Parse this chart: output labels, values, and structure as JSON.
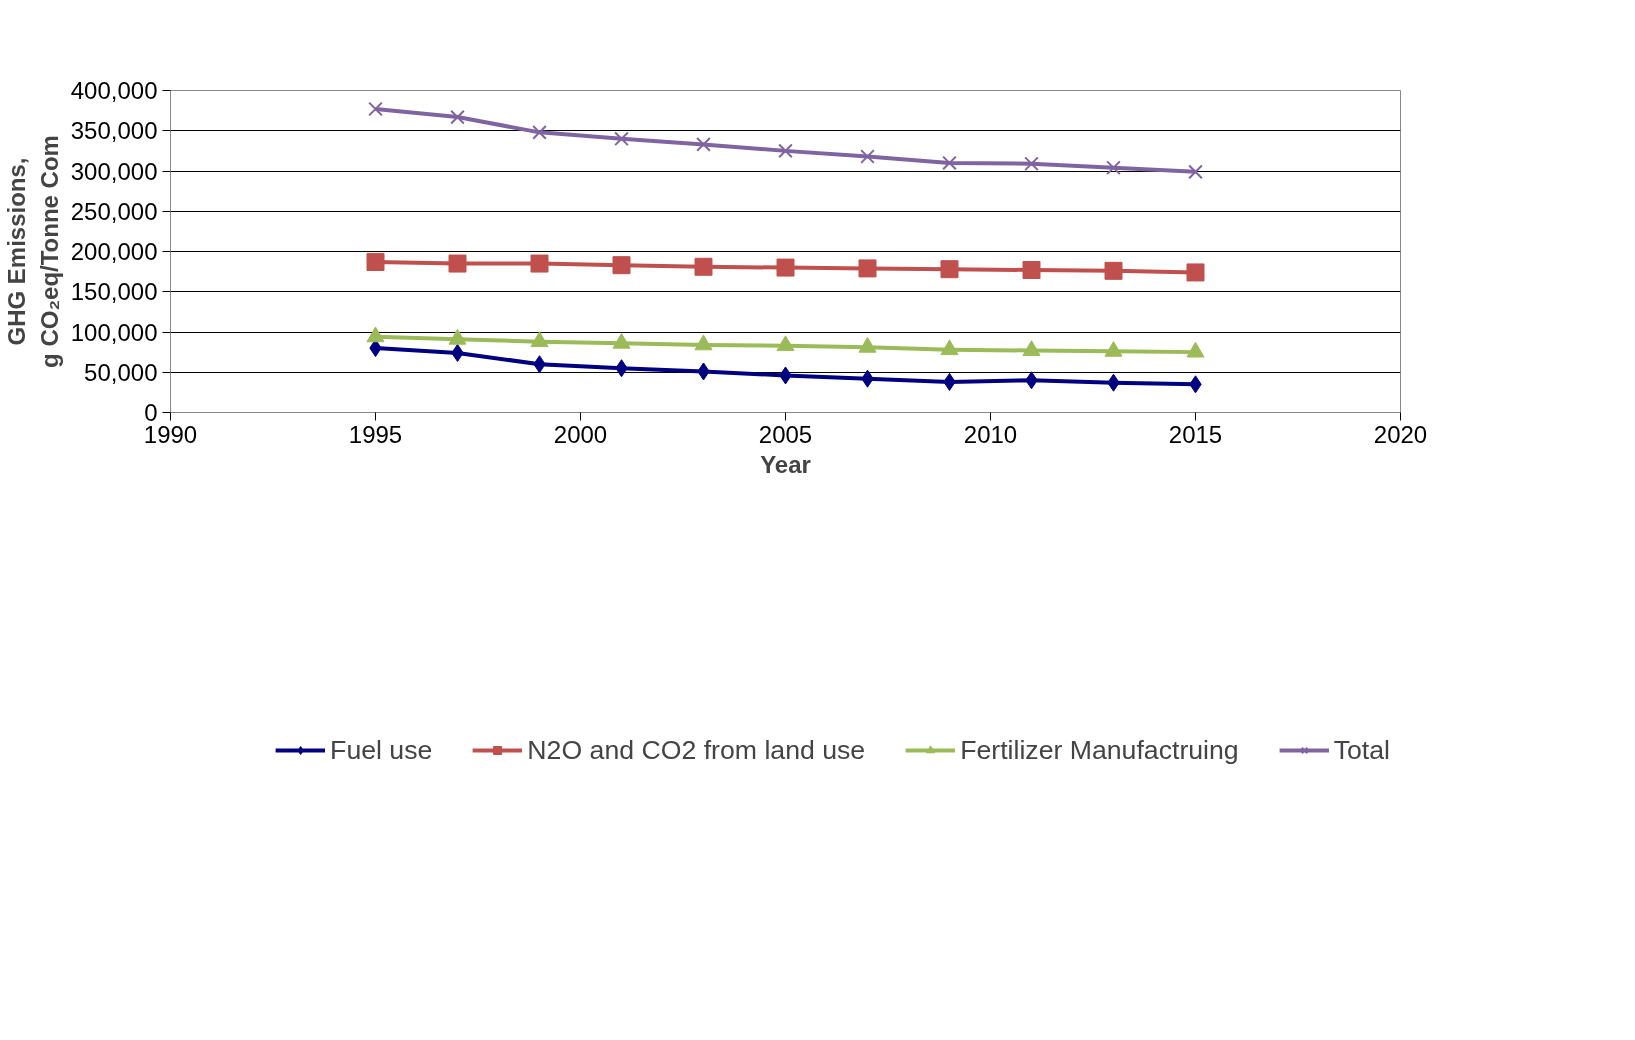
{
  "chart_data": {
    "type": "line",
    "xlabel": "Year",
    "ylabel": "GHG Emissions,\ng CO₂eq/Tonne Com",
    "x": [
      1995,
      1997,
      1999,
      2001,
      2003,
      2005,
      2007,
      2009,
      2011,
      2013,
      2015
    ],
    "series": [
      {
        "name": "Fuel use",
        "color": "#000080",
        "marker": "diamond",
        "values": [
          80000,
          74000,
          60000,
          55000,
          51000,
          46000,
          42000,
          38000,
          40000,
          37000,
          35000
        ]
      },
      {
        "name": "N2O and CO2 from land use",
        "color": "#c0504d",
        "marker": "square",
        "values": [
          187000,
          185000,
          185000,
          183000,
          181000,
          180000,
          179000,
          178000,
          177000,
          176000,
          174000
        ]
      },
      {
        "name": "Fertilizer Manufactruing",
        "color": "#9bbb59",
        "marker": "triangle",
        "values": [
          94000,
          91000,
          88000,
          86000,
          84000,
          83000,
          81000,
          78000,
          77000,
          76000,
          75000
        ]
      },
      {
        "name": "Total",
        "color": "#8064a2",
        "marker": "cross",
        "values": [
          377000,
          367000,
          348000,
          340000,
          333000,
          325000,
          318000,
          310000,
          309000,
          304000,
          299000
        ]
      }
    ],
    "xlim": [
      1990,
      2020
    ],
    "xticks": [
      1990,
      1995,
      2000,
      2005,
      2010,
      2015,
      2020
    ],
    "ylim": [
      0,
      400000
    ],
    "yticks": [
      {
        "value": 0,
        "label": "0"
      },
      {
        "value": 50000,
        "label": "50,000"
      },
      {
        "value": 100000,
        "label": "100,000"
      },
      {
        "value": 150000,
        "label": "150,000"
      },
      {
        "value": 200000,
        "label": "200,000"
      },
      {
        "value": 250000,
        "label": "250,000"
      },
      {
        "value": 300000,
        "label": "300,000"
      },
      {
        "value": 350000,
        "label": "350,000"
      },
      {
        "value": 400000,
        "label": "400,000"
      }
    ],
    "grid": "y",
    "legend": "bottom",
    "line_style": "solid"
  }
}
